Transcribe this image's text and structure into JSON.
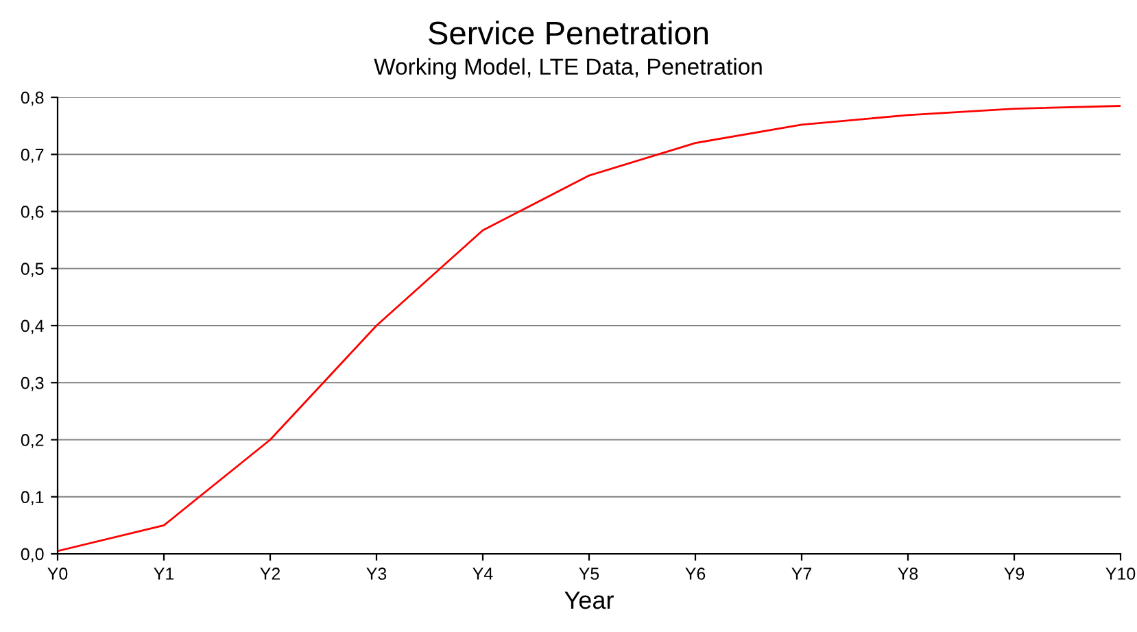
{
  "chart_data": {
    "type": "line",
    "title": "Service Penetration",
    "subtitle": "Working Model, LTE Data, Penetration",
    "xlabel": "Year",
    "categories": [
      "Y0",
      "Y1",
      "Y2",
      "Y3",
      "Y4",
      "Y5",
      "Y6",
      "Y7",
      "Y8",
      "Y9",
      "Y10"
    ],
    "series": [
      {
        "color": "#ff0000",
        "values": [
          0.005,
          0.05,
          0.2,
          0.4,
          0.567,
          0.663,
          0.72,
          0.752,
          0.769,
          0.78,
          0.785
        ]
      }
    ],
    "ylim": [
      0,
      0.8
    ],
    "yticks": [
      {
        "value": 0,
        "label": "0,0"
      },
      {
        "value": 0.1,
        "label": "0,1"
      },
      {
        "value": 0.2,
        "label": "0,2"
      },
      {
        "value": 0.3,
        "label": "0,3"
      },
      {
        "value": 0.4,
        "label": "0,4"
      },
      {
        "value": 0.5,
        "label": "0,5"
      },
      {
        "value": 0.6,
        "label": "0,6"
      },
      {
        "value": 0.7,
        "label": "0,7"
      },
      {
        "value": 0.8,
        "label": "0,8"
      }
    ],
    "grid": "y",
    "marker": "none",
    "line_style": "solid"
  }
}
